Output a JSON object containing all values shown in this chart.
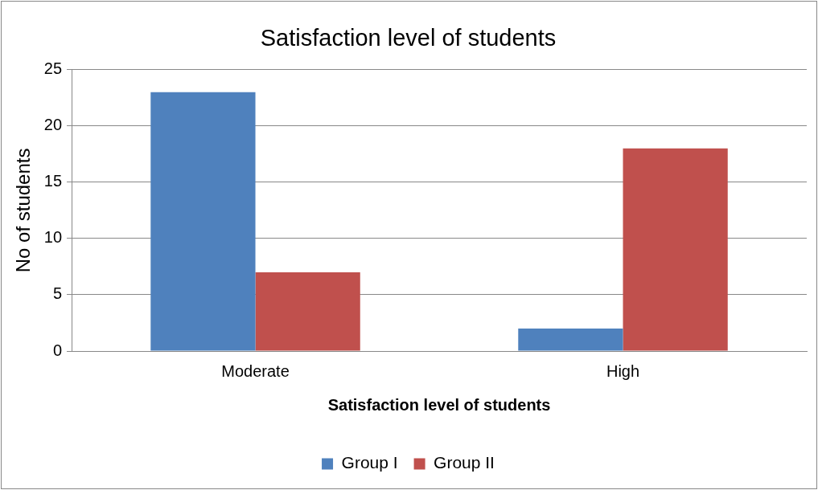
{
  "chart_data": {
    "type": "bar",
    "title": "Satisfaction level of students",
    "xlabel": "Satisfaction level of students",
    "ylabel": "No of students",
    "categories": [
      "Moderate",
      "High"
    ],
    "series": [
      {
        "name": "Group I",
        "color": "#4f81bd",
        "values": [
          23,
          2
        ]
      },
      {
        "name": "Group II",
        "color": "#c0504d",
        "values": [
          7,
          18
        ]
      }
    ],
    "ylim": [
      0,
      25
    ],
    "yticks": [
      0,
      5,
      10,
      15,
      20,
      25
    ],
    "grid": "y",
    "legend": "bottom"
  }
}
